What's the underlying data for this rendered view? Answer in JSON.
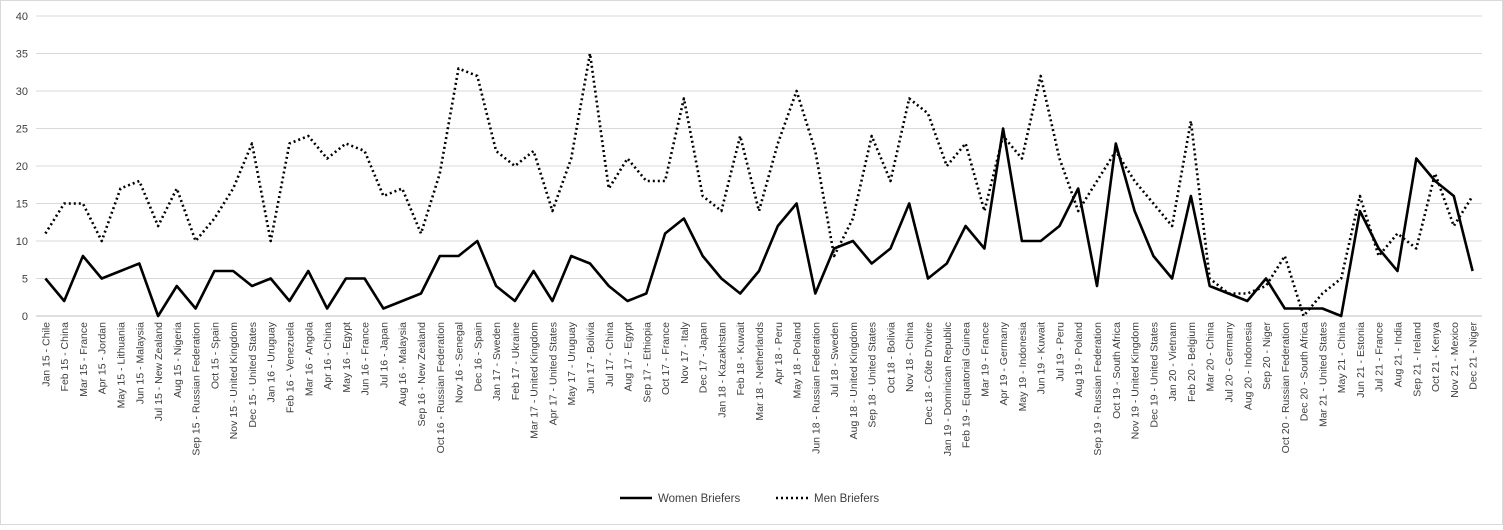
{
  "chart_data": {
    "type": "line",
    "title": "",
    "xlabel": "",
    "ylabel": "",
    "ylim": [
      0,
      40
    ],
    "yticks": [
      0,
      5,
      10,
      15,
      20,
      25,
      30,
      35,
      40
    ],
    "grid": "horizontal",
    "legend": "bottom-center",
    "categories": [
      "Jan 15 - Chile",
      "Feb 15 - China",
      "Mar 15 - France",
      "Apr 15 - Jordan",
      "May 15 - Lithuania",
      "Jun 15 - Malaysia",
      "Jul 15 - New Zealand",
      "Aug 15 - Nigeria",
      "Sep 15 - Russian Federation",
      "Oct 15 - Spain",
      "Nov 15 - United Kingdom",
      "Dec 15 - United States",
      "Jan 16 - Uruguay",
      "Feb 16 - Venezuela",
      "Mar 16 - Angola",
      "Apr 16 - China",
      "May 16 - Egypt",
      "Jun 16 - France",
      "Jul 16 - Japan",
      "Aug 16 - Malaysia",
      "Sep 16 - New Zealand",
      "Oct 16 - Russian Federation",
      "Nov 16 - Senegal",
      "Dec 16 - Spain",
      "Jan 17 - Sweden",
      "Feb 17 - Ukraine",
      "Mar 17 - United Kingdom",
      "Apr 17 - United States",
      "May 17 - Uruguay",
      "Jun 17 - Bolivia",
      "Jul 17 - China",
      "Aug 17 - Egypt",
      "Sep 17 - Ethiopia",
      "Oct 17 - France",
      "Nov 17 - Italy",
      "Dec 17 - Japan",
      "Jan 18 - Kazakhstan",
      "Feb 18 - Kuwait",
      "Mar 18 - Netherlands",
      "Apr 18 - Peru",
      "May 18 - Poland",
      "Jun 18 - Russian Federation",
      "Jul 18 - Sweden",
      "Aug 18 - United Kingdom",
      "Sep 18 - United States",
      "Oct 18 - Bolivia",
      "Nov 18 - China",
      "Dec 18 - Côte D'Ivoire",
      "Jan 19 - Dominican Republic",
      "Feb 19 - Equatorial Guinea",
      "Mar 19 - France",
      "Apr 19 - Germany",
      "May 19 - Indonesia",
      "Jun 19 - Kuwait",
      "Jul 19 - Peru",
      "Aug 19 - Poland",
      "Sep 19 - Russian Federation",
      "Oct 19 - South Africa",
      "Nov 19 - United Kingdom",
      "Dec 19 - United States",
      "Jan 20 - Vietnam",
      "Feb 20 - Belgium",
      "Mar 20 - China",
      "Jul 20 - Germany",
      "Aug 20 - Indonesia",
      "Sep 20 - Niger",
      "Oct 20 - Russian Federation",
      "Dec 20 - South Africa",
      "Mar 21 - United States",
      "May 21 - China",
      "Jun 21 - Estonia",
      "Jul 21 - France",
      "Aug 21 - India",
      "Sep 21 - Ireland",
      "Oct 21 - Kenya",
      "Nov 21 - Mexico",
      "Dec 21 - Niger"
    ],
    "series": [
      {
        "name": "Women Briefers",
        "color": "#000000",
        "style": "solid",
        "values": [
          5,
          2,
          8,
          5,
          6,
          7,
          0,
          4,
          1,
          6,
          6,
          4,
          5,
          2,
          6,
          1,
          5,
          5,
          1,
          2,
          3,
          8,
          8,
          10,
          4,
          2,
          6,
          2,
          8,
          7,
          4,
          2,
          3,
          11,
          13,
          8,
          5,
          3,
          6,
          12,
          15,
          3,
          9,
          10,
          7,
          9,
          15,
          5,
          7,
          12,
          9,
          25,
          10,
          10,
          12,
          17,
          4,
          23,
          14,
          8,
          5,
          16,
          4,
          3,
          2,
          5,
          1,
          1,
          1,
          0,
          14,
          9,
          6,
          21,
          18,
          16,
          6
        ]
      },
      {
        "name": "Men Briefers",
        "color": "#000000",
        "style": "dotted",
        "values": [
          11,
          15,
          15,
          10,
          17,
          18,
          12,
          17,
          10,
          13,
          17,
          23,
          10,
          23,
          24,
          21,
          23,
          22,
          16,
          17,
          11,
          19,
          33,
          32,
          22,
          20,
          22,
          14,
          21,
          35,
          17,
          21,
          18,
          18,
          29,
          16,
          14,
          24,
          14,
          23,
          30,
          22,
          8,
          13,
          24,
          18,
          29,
          27,
          20,
          23,
          14,
          24,
          21,
          32,
          21,
          14,
          18,
          22,
          18,
          15,
          12,
          26,
          5,
          3,
          3,
          4,
          8,
          0,
          3,
          5,
          16,
          8,
          11,
          9,
          19,
          12,
          16
        ]
      }
    ]
  }
}
